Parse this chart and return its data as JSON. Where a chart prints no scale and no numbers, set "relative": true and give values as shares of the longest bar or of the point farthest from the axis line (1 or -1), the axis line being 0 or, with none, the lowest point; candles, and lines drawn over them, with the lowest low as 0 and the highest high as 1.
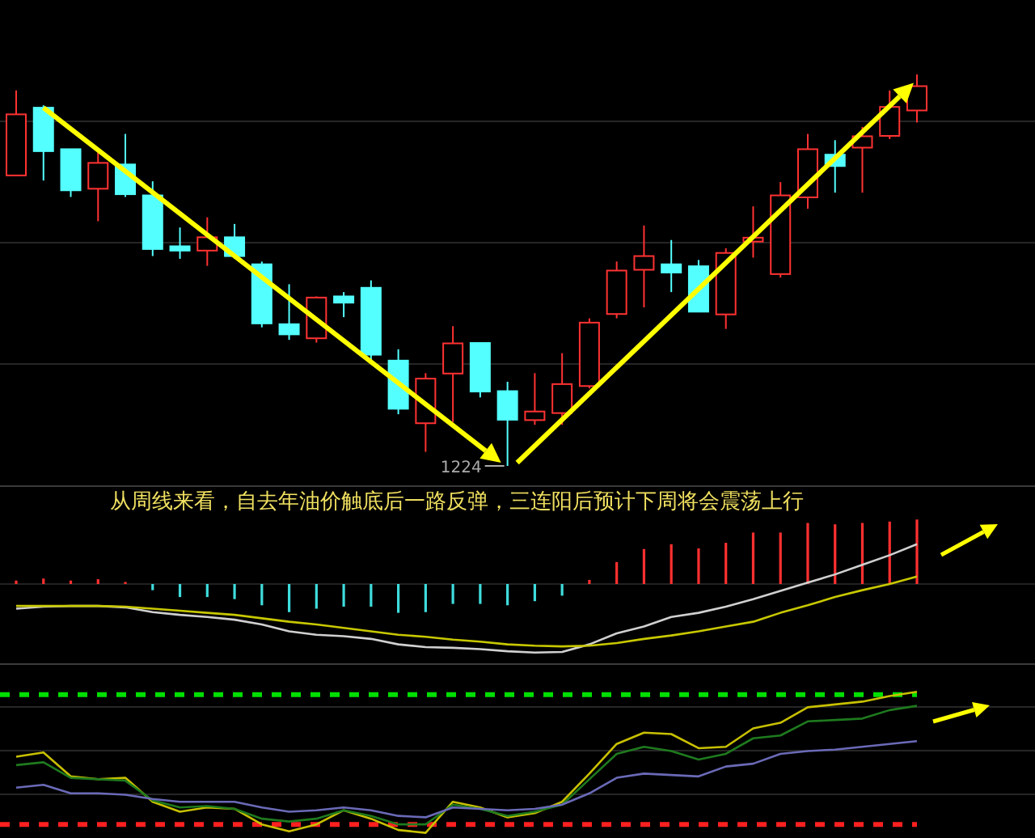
{
  "chart_data": [
    {
      "type": "candlestick",
      "relative": true,
      "grid": true,
      "categories": [
        null,
        null,
        null,
        null,
        null,
        null,
        null,
        null,
        null,
        null,
        null,
        null,
        null,
        null,
        null,
        null,
        null,
        null,
        null,
        null,
        null,
        null,
        null,
        null,
        null,
        null,
        null,
        null,
        null,
        null,
        null,
        null,
        null,
        null
      ],
      "ohlc": [
        [
          0.742,
          0.959,
          0.742,
          0.898
        ],
        [
          0.915,
          0.921,
          0.729,
          0.804
        ],
        [
          0.809,
          0.809,
          0.687,
          0.704
        ],
        [
          0.708,
          0.804,
          0.625,
          0.774
        ],
        [
          0.77,
          0.848,
          0.687,
          0.694
        ],
        [
          0.691,
          0.727,
          0.536,
          0.554
        ],
        [
          0.561,
          0.609,
          0.529,
          0.55
        ],
        [
          0.55,
          0.635,
          0.511,
          0.584
        ],
        [
          0.584,
          0.618,
          0.529,
          0.536
        ],
        [
          0.515,
          0.522,
          0.354,
          0.364
        ],
        [
          0.362,
          0.464,
          0.322,
          0.336
        ],
        [
          0.326,
          0.433,
          0.315,
          0.43
        ],
        [
          0.433,
          0.444,
          0.38,
          0.417
        ],
        [
          0.455,
          0.474,
          0.267,
          0.284
        ],
        [
          0.269,
          0.298,
          0.132,
          0.146
        ],
        [
          0.109,
          0.237,
          0.036,
          0.223
        ],
        [
          0.236,
          0.357,
          0.112,
          0.313
        ],
        [
          0.314,
          0.314,
          0.175,
          0.19
        ],
        [
          0.191,
          0.215,
          0,
          0.118
        ],
        [
          0.117,
          0.237,
          0.105,
          0.139
        ],
        [
          0.135,
          0.288,
          0.105,
          0.209
        ],
        [
          0.204,
          0.377,
          0.198,
          0.366
        ],
        [
          0.388,
          0.522,
          0.377,
          0.499
        ],
        [
          0.501,
          0.614,
          0.405,
          0.536
        ],
        [
          0.515,
          0.577,
          0.444,
          0.494
        ],
        [
          0.51,
          0.526,
          0.394,
          0.394
        ],
        [
          0.387,
          0.556,
          0.35,
          0.544
        ],
        [
          0.573,
          0.663,
          0.532,
          0.583
        ],
        [
          0.49,
          0.725,
          0.481,
          0.691
        ],
        [
          0.686,
          0.848,
          0.657,
          0.809
        ],
        [
          0.795,
          0.832,
          0.698,
          0.766
        ],
        [
          0.813,
          0.866,
          0.698,
          0.842
        ],
        [
          0.843,
          0.959,
          0.835,
          0.917
        ],
        [
          0.908,
          1,
          0.877,
          0.97
        ]
      ],
      "colors": [
        "#ff3232",
        "#54ffff",
        "#54ffff",
        "#ff3232",
        "#54ffff",
        "#54ffff",
        "#54ffff",
        "#ff3232",
        "#54ffff",
        "#54ffff",
        "#54ffff",
        "#ff3232",
        "#54ffff",
        "#54ffff",
        "#54ffff",
        "#ff3232",
        "#ff3232",
        "#54ffff",
        "#54ffff",
        "#ff3232",
        "#ff3232",
        "#ff3232",
        "#ff3232",
        "#ff3232",
        "#54ffff",
        "#54ffff",
        "#ff3232",
        "#ff3232",
        "#ff3232",
        "#ff3232",
        "#54ffff",
        "#ff3232",
        "#ff3232",
        "#ff3232"
      ],
      "annotations": [
        "1224",
        "从周线来看，自去年油价触底后一路反弹，三连阳后预计下周将会震荡上行"
      ]
    },
    {
      "type": "line",
      "relative": true,
      "categories": [
        null,
        null,
        null,
        null,
        null,
        null,
        null,
        null,
        null,
        null,
        null,
        null,
        null,
        null,
        null,
        null,
        null,
        null,
        null,
        null,
        null,
        null,
        null,
        null,
        null,
        null,
        null,
        null,
        null,
        null,
        null,
        null,
        null,
        null
      ],
      "series": [
        {
          "type": "bar",
          "values": [
            0.05,
            0.08,
            0.05,
            0.07,
            0.03,
            -0.09,
            -0.19,
            -0.19,
            -0.22,
            -0.31,
            -0.41,
            -0.36,
            -0.33,
            -0.33,
            -0.42,
            -0.41,
            -0.29,
            -0.29,
            -0.31,
            -0.25,
            -0.17,
            0.06,
            0.32,
            0.51,
            0.58,
            0.52,
            0.6,
            0.75,
            0.75,
            0.89,
            0.87,
            0.89,
            0.91,
            0.94
          ],
          "colors": [
            "#ff3030",
            "#ff3030",
            "#ff3030",
            "#ff3030",
            "#ff3030",
            "#3fdcdc",
            "#3fdcdc",
            "#3fdcdc",
            "#3fdcdc",
            "#3fdcdc",
            "#3fdcdc",
            "#3fdcdc",
            "#3fdcdc",
            "#3fdcdc",
            "#3fdcdc",
            "#3fdcdc",
            "#3fdcdc",
            "#3fdcdc",
            "#3fdcdc",
            "#3fdcdc",
            "#3fdcdc",
            "#ff3030",
            "#ff3030",
            "#ff3030",
            "#ff3030",
            "#ff3030",
            "#ff3030",
            "#ff3030",
            "#ff3030",
            "#ff3030",
            "#ff3030",
            "#ff3030",
            "#ff3030",
            "#ff3030"
          ]
        },
        {
          "type": "line",
          "color": "#d0d0d0",
          "values": [
            -0.36,
            -0.33,
            -0.32,
            -0.32,
            -0.34,
            -0.41,
            -0.45,
            -0.48,
            -0.52,
            -0.59,
            -0.69,
            -0.74,
            -0.76,
            -0.8,
            -0.88,
            -0.92,
            -0.93,
            -0.95,
            -0.98,
            -1,
            -0.99,
            -0.88,
            -0.72,
            -0.62,
            -0.48,
            -0.42,
            -0.33,
            -0.22,
            -0.1,
            0.02,
            0.14,
            0.28,
            0.42,
            0.58
          ]
        },
        {
          "type": "line",
          "color": "#c8c800",
          "values": [
            -0.32,
            -0.32,
            -0.32,
            -0.32,
            -0.33,
            -0.36,
            -0.39,
            -0.42,
            -0.45,
            -0.5,
            -0.55,
            -0.59,
            -0.64,
            -0.69,
            -0.74,
            -0.77,
            -0.81,
            -0.84,
            -0.88,
            -0.9,
            -0.91,
            -0.9,
            -0.86,
            -0.8,
            -0.75,
            -0.69,
            -0.62,
            -0.55,
            -0.42,
            -0.31,
            -0.19,
            -0.09,
            0,
            0.11
          ]
        }
      ]
    },
    {
      "type": "line",
      "relative": true,
      "grid": true,
      "categories": [
        null,
        null,
        null,
        null,
        null,
        null,
        null,
        null,
        null,
        null,
        null,
        null,
        null,
        null,
        null,
        null,
        null,
        null,
        null,
        null,
        null,
        null,
        null,
        null,
        null,
        null,
        null,
        null,
        null,
        null,
        null,
        null,
        null,
        null
      ],
      "series": [
        {
          "color": "#c8c000",
          "values": [
            0.54,
            0.57,
            0.4,
            0.38,
            0.39,
            0.22,
            0.15,
            0.18,
            0.17,
            0.06,
            0.01,
            0.06,
            0.16,
            0.1,
            0.02,
            0,
            0.22,
            0.18,
            0.11,
            0.14,
            0.22,
            0.42,
            0.63,
            0.71,
            0.7,
            0.6,
            0.61,
            0.74,
            0.78,
            0.89,
            0.91,
            0.93,
            0.97,
            1
          ]
        },
        {
          "color": "#1e7a1e",
          "values": [
            0.48,
            0.5,
            0.39,
            0.38,
            0.37,
            0.23,
            0.18,
            0.19,
            0.17,
            0.1,
            0.08,
            0.1,
            0.16,
            0.12,
            0.06,
            0.06,
            0.2,
            0.17,
            0.12,
            0.15,
            0.2,
            0.38,
            0.56,
            0.61,
            0.58,
            0.52,
            0.56,
            0.67,
            0.69,
            0.79,
            0.8,
            0.81,
            0.87,
            0.9
          ]
        },
        {
          "color": "#6a6ab8",
          "values": [
            0.32,
            0.34,
            0.28,
            0.28,
            0.27,
            0.24,
            0.22,
            0.22,
            0.22,
            0.18,
            0.15,
            0.16,
            0.18,
            0.16,
            0.12,
            0.11,
            0.18,
            0.17,
            0.16,
            0.17,
            0.2,
            0.28,
            0.39,
            0.42,
            0.41,
            0.4,
            0.47,
            0.49,
            0.56,
            0.58,
            0.59,
            0.61,
            0.63,
            0.65
          ]
        }
      ],
      "ref_lines": [
        {
          "axis": "y",
          "value": 0.98,
          "color": "#00e000",
          "line_style": "dashed"
        },
        {
          "axis": "y",
          "value": 0.06,
          "color": "#ff2020",
          "line_style": "dashed"
        }
      ]
    }
  ]
}
